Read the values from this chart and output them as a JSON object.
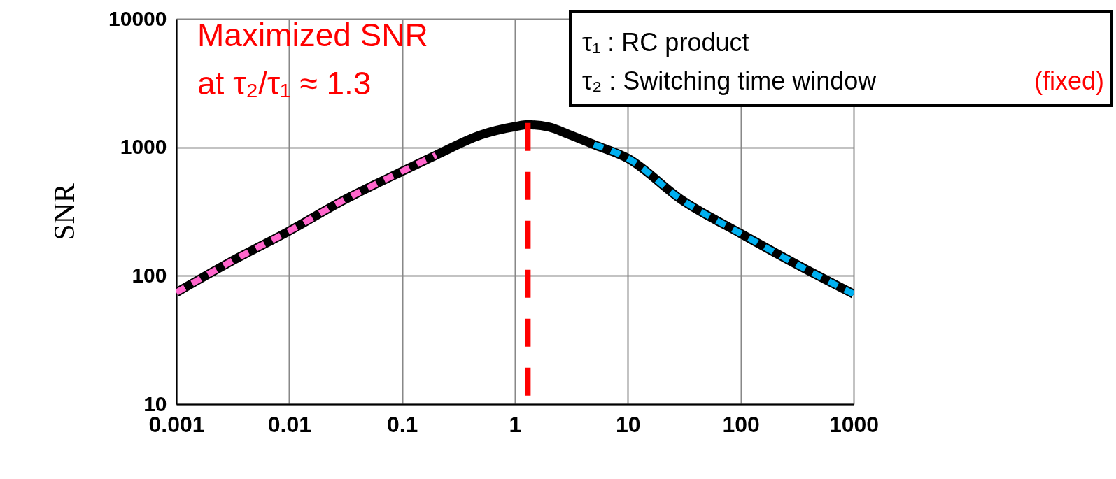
{
  "chart_data": {
    "type": "line",
    "ylabel": "SNR",
    "log": "xy",
    "grid": true,
    "xlim": [
      0.001,
      1000
    ],
    "xticks": [
      0.001,
      0.01,
      0.1,
      1,
      10,
      100,
      1000
    ],
    "ylim": [
      10,
      10000
    ],
    "yticks": [
      10,
      100,
      1000,
      10000
    ],
    "series": [
      {
        "color": "#000000",
        "line_style": "solid",
        "x": [
          0.001,
          0.003,
          0.01,
          0.03,
          0.1,
          0.2,
          0.5,
          1,
          1.3,
          2,
          3,
          5,
          10,
          30,
          100,
          300,
          1000
        ],
        "values": [
          74,
          128,
          223,
          385,
          650,
          870,
          1250,
          1450,
          1500,
          1440,
          1260,
          1050,
          820,
          390,
          213,
          125,
          72
        ]
      },
      {
        "color": "#ff66cc",
        "line_style": "dashed",
        "x": [
          0.001,
          0.003,
          0.01,
          0.03,
          0.1,
          0.2
        ],
        "values": [
          74,
          128,
          223,
          385,
          650,
          870
        ]
      },
      {
        "color": "#00b0f0",
        "line_style": "dashed",
        "x": [
          5,
          10,
          30,
          100,
          300,
          1000
        ],
        "values": [
          1050,
          820,
          390,
          213,
          125,
          72
        ]
      }
    ],
    "ref_lines": [
      {
        "axis": "x",
        "value": 1.3,
        "color": "#ff0000",
        "line_style": "dashed"
      }
    ],
    "annotations": [
      "Maximized SNR\nat τ₂/τ₁ ≈ 1.3",
      "τ₁ : RC product",
      "τ₂ : Switching time window",
      "(fixed)"
    ]
  }
}
